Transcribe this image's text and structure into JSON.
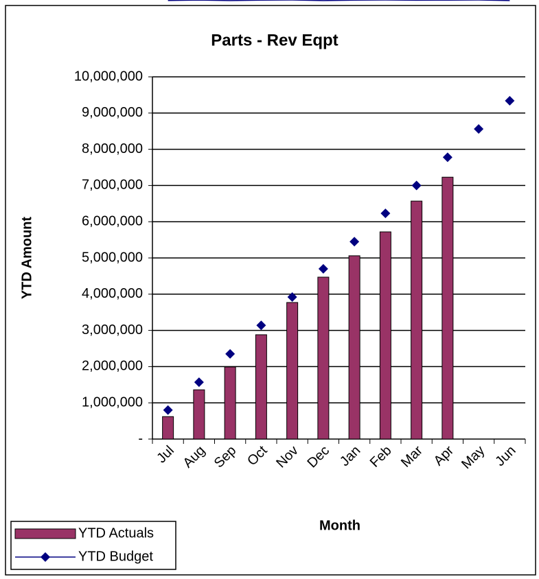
{
  "chart_data": {
    "type": "bar_line",
    "title": "Parts - Rev Eqpt",
    "x_label": "Month",
    "y_label": "YTD Amount",
    "categories": [
      "Jul",
      "Aug",
      "Sep",
      "Oct",
      "Nov",
      "Dec",
      "Jan",
      "Feb",
      "Mar",
      "Apr",
      "May",
      "Jun"
    ],
    "series": [
      {
        "name": "YTD Actuals",
        "type": "bar",
        "color": "#993366",
        "values": [
          620000,
          1360000,
          1990000,
          2880000,
          3770000,
          4470000,
          5060000,
          5720000,
          6570000,
          7230000,
          null,
          null
        ]
      },
      {
        "name": "YTD Budget",
        "type": "line",
        "color": "#000080",
        "values": [
          800000,
          1570000,
          2350000,
          3140000,
          3920000,
          4700000,
          5450000,
          6230000,
          7000000,
          7780000,
          8560000,
          9340000
        ]
      }
    ],
    "ylim": [
      0,
      10000000
    ],
    "yticks": [
      {
        "value": 0,
        "label": "-"
      },
      {
        "value": 1000000,
        "label": "1,000,000"
      },
      {
        "value": 2000000,
        "label": "2,000,000"
      },
      {
        "value": 3000000,
        "label": "3,000,000"
      },
      {
        "value": 4000000,
        "label": "4,000,000"
      },
      {
        "value": 5000000,
        "label": "5,000,000"
      },
      {
        "value": 6000000,
        "label": "6,000,000"
      },
      {
        "value": 7000000,
        "label": "7,000,000"
      },
      {
        "value": 8000000,
        "label": "8,000,000"
      },
      {
        "value": 9000000,
        "label": "9,000,000"
      },
      {
        "value": 10000000,
        "label": "10,000,000"
      }
    ],
    "grid": true,
    "legend": "lower left"
  }
}
